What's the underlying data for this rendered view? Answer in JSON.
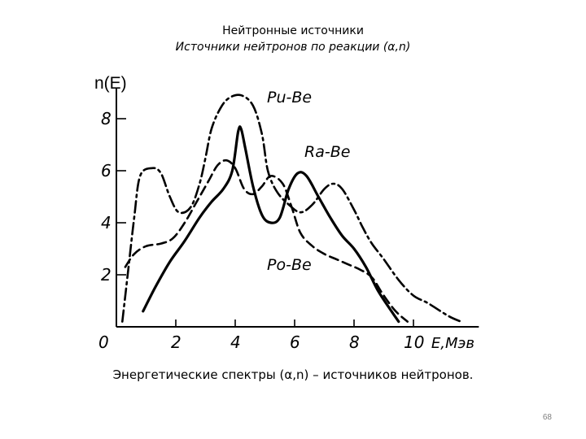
{
  "slide": {
    "title": "Нейтронные источники",
    "subtitle": "Источники нейтронов по реакции (α,n)",
    "caption": "Энергетические спектры (α,n) – источников нейтронов.",
    "page_number": "68"
  },
  "chart_data": {
    "type": "line",
    "ylabel": "n(E)",
    "xlabel": "E,Мэв",
    "x_ticks": [
      "0",
      "2",
      "4",
      "6",
      "8",
      "10"
    ],
    "y_ticks": [
      "2",
      "4",
      "6",
      "8"
    ],
    "xlim": [
      0,
      12
    ],
    "ylim": [
      0,
      9
    ],
    "series": [
      {
        "name": "Pu-Be",
        "style": "dash-dot",
        "points": [
          [
            0.2,
            0.2
          ],
          [
            0.4,
            2.2
          ],
          [
            0.6,
            4.2
          ],
          [
            0.8,
            5.8
          ],
          [
            1.2,
            6.1
          ],
          [
            1.5,
            5.9
          ],
          [
            1.8,
            5.0
          ],
          [
            2.1,
            4.4
          ],
          [
            2.5,
            4.6
          ],
          [
            2.8,
            5.5
          ],
          [
            3.0,
            6.5
          ],
          [
            3.2,
            7.6
          ],
          [
            3.5,
            8.4
          ],
          [
            3.8,
            8.8
          ],
          [
            4.2,
            8.9
          ],
          [
            4.6,
            8.5
          ],
          [
            4.9,
            7.4
          ],
          [
            5.1,
            6.0
          ],
          [
            5.4,
            5.2
          ],
          [
            5.8,
            4.7
          ],
          [
            6.2,
            4.4
          ],
          [
            6.6,
            4.7
          ],
          [
            7.0,
            5.3
          ],
          [
            7.3,
            5.5
          ],
          [
            7.6,
            5.3
          ],
          [
            8.0,
            4.5
          ],
          [
            8.3,
            3.8
          ],
          [
            8.6,
            3.2
          ],
          [
            9.0,
            2.6
          ],
          [
            9.5,
            1.8
          ],
          [
            10.0,
            1.2
          ],
          [
            10.5,
            0.9
          ],
          [
            11.2,
            0.4
          ],
          [
            11.6,
            0.2
          ]
        ]
      },
      {
        "name": "Ra-Be",
        "style": "solid",
        "points": [
          [
            0.9,
            0.6
          ],
          [
            1.3,
            1.5
          ],
          [
            1.8,
            2.5
          ],
          [
            2.3,
            3.3
          ],
          [
            2.8,
            4.2
          ],
          [
            3.2,
            4.8
          ],
          [
            3.6,
            5.3
          ],
          [
            3.9,
            6.0
          ],
          [
            4.1,
            7.5
          ],
          [
            4.2,
            7.6
          ],
          [
            4.35,
            6.8
          ],
          [
            4.6,
            5.4
          ],
          [
            4.9,
            4.3
          ],
          [
            5.2,
            4.0
          ],
          [
            5.5,
            4.2
          ],
          [
            5.8,
            5.3
          ],
          [
            6.1,
            5.9
          ],
          [
            6.4,
            5.8
          ],
          [
            6.8,
            5.0
          ],
          [
            7.2,
            4.2
          ],
          [
            7.6,
            3.5
          ],
          [
            8.0,
            3.0
          ],
          [
            8.4,
            2.3
          ],
          [
            8.8,
            1.4
          ],
          [
            9.2,
            0.7
          ],
          [
            9.5,
            0.2
          ]
        ]
      },
      {
        "name": "Po-Be",
        "style": "dashed",
        "points": [
          [
            0.3,
            2.3
          ],
          [
            0.6,
            2.8
          ],
          [
            1.0,
            3.1
          ],
          [
            1.5,
            3.2
          ],
          [
            1.9,
            3.4
          ],
          [
            2.3,
            4.0
          ],
          [
            2.7,
            4.8
          ],
          [
            3.1,
            5.6
          ],
          [
            3.4,
            6.2
          ],
          [
            3.7,
            6.4
          ],
          [
            4.0,
            6.1
          ],
          [
            4.3,
            5.3
          ],
          [
            4.6,
            5.1
          ],
          [
            4.9,
            5.4
          ],
          [
            5.2,
            5.8
          ],
          [
            5.6,
            5.5
          ],
          [
            5.9,
            4.6
          ],
          [
            6.2,
            3.6
          ],
          [
            6.6,
            3.1
          ],
          [
            7.0,
            2.8
          ],
          [
            7.4,
            2.6
          ],
          [
            7.8,
            2.4
          ],
          [
            8.2,
            2.2
          ],
          [
            8.6,
            1.9
          ],
          [
            9.0,
            1.2
          ],
          [
            9.4,
            0.6
          ],
          [
            9.8,
            0.2
          ]
        ]
      }
    ]
  }
}
